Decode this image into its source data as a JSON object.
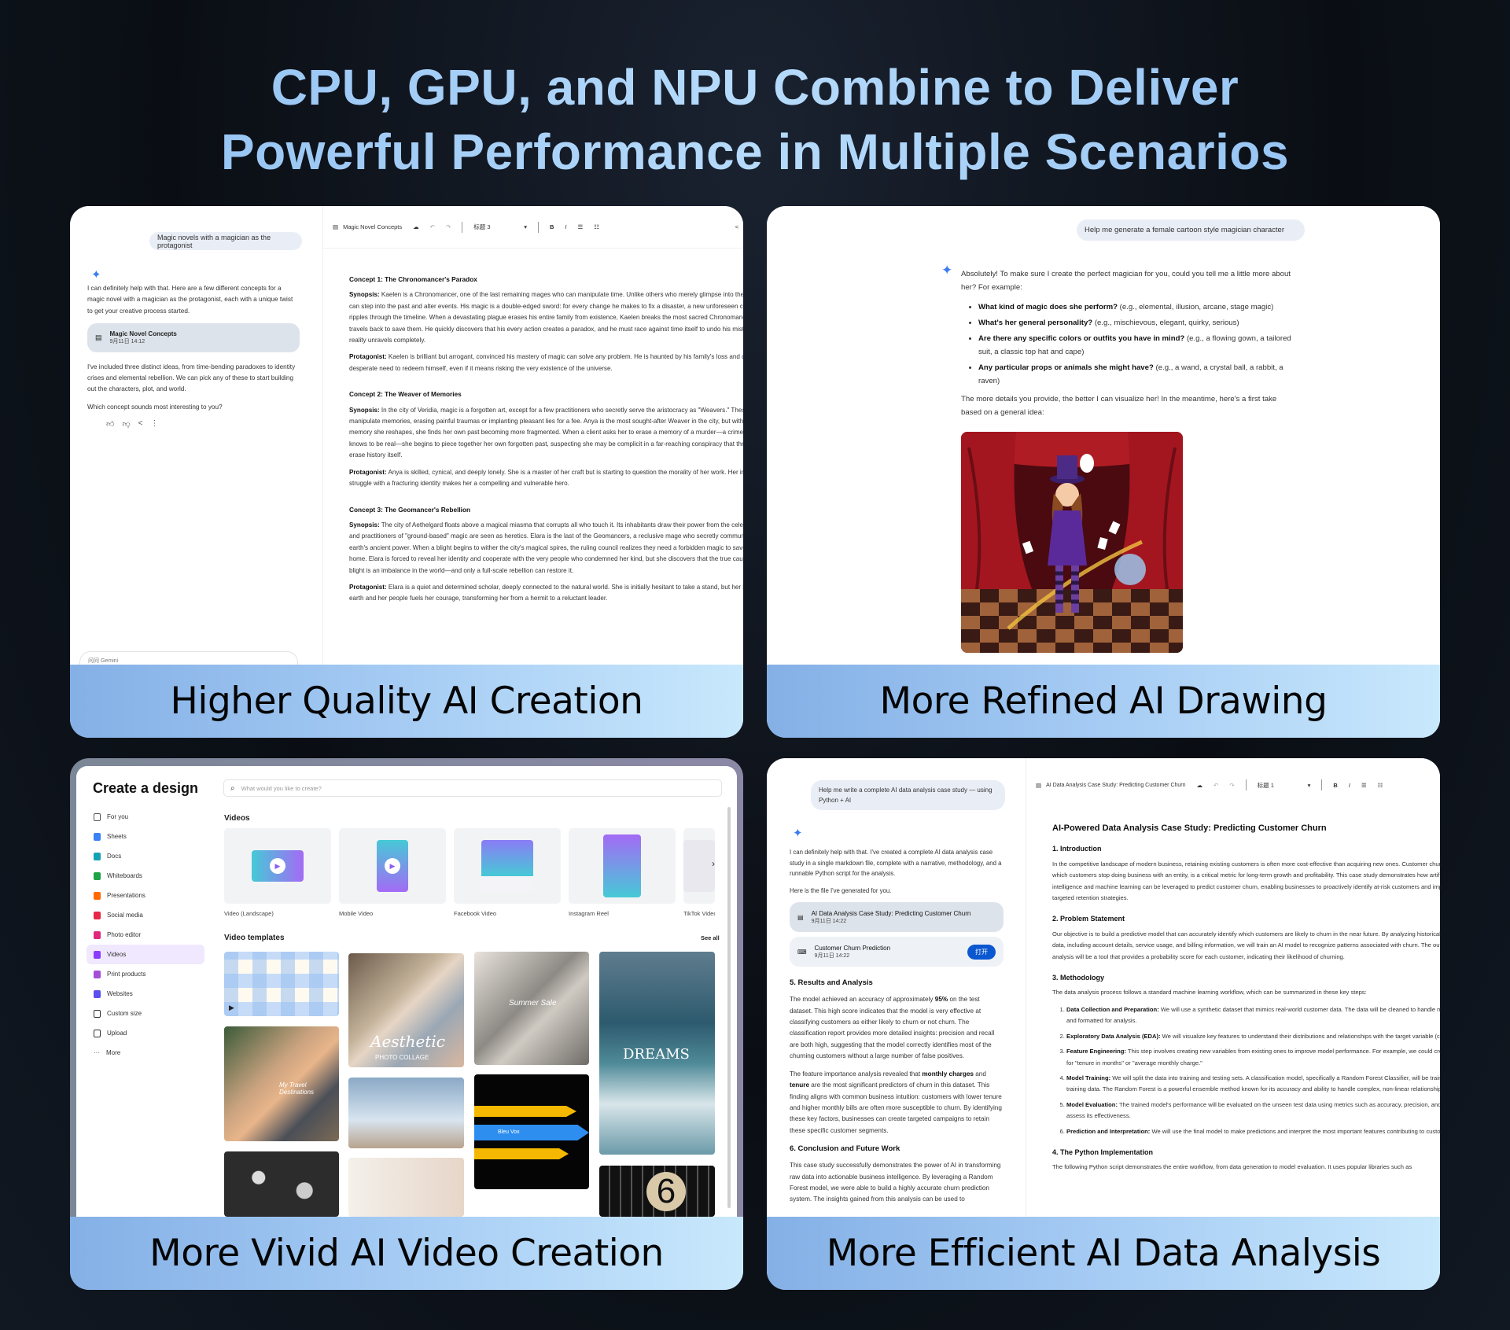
{
  "hero": {
    "lines": [
      "CPU, GPU, and NPU Combine to Deliver",
      "Powerful Performance in Multiple Scenarios"
    ],
    "color": "#9ccaf6"
  },
  "panels": {
    "creation": {
      "caption": "Higher Quality AI Creation",
      "user_prompt": "Magic novels with a magician as the protagonist",
      "reply": [
        "I can definitely help with that. Here are a few different concepts for a magic novel with a magician as the protagonist, each with a unique twist to get your creative process started.",
        "I've included three distinct ideas, from time-bending paradoxes to identity crises and elemental rebellion. We can pick any of these to start building out the characters, plot, and world.",
        "Which concept sounds most interesting to you?"
      ],
      "file_card": {
        "title": "Magic Novel Concepts",
        "date": "9月11日 14:12"
      },
      "input_placeholder": "问问 Gemini",
      "doc": {
        "title": "Magic Novel Concepts",
        "style": "标题 3",
        "concepts": [
          {
            "heading": "Concept 1: The Chronomancer's Paradox",
            "paragraphs": [
              {
                "label": "Synopsis:",
                "text": " Kaelen is a Chronomancer, one of the last remaining mages who can manipulate time. Unlike others who merely glimpse into the future, he can step into the past and alter events. His magic is a double-edged sword: for every change he makes to fix a disaster, a new unforeseen consequence ripples through the timeline. When a devastating plague erases his entire family from existence, Kaelen breaks the most sacred Chronomancer rule and travels back to save them. He quickly discovers that his every action creates a paradox, and he must race against time itself to undo his mistakes before reality unravels completely."
              },
              {
                "label": "Protagonist:",
                "text": " Kaelen is brilliant but arrogant, convinced his mastery of magic can solve any problem. He is haunted by his family's loss and driven by a desperate need to redeem himself, even if it means risking the very existence of the universe."
              }
            ]
          },
          {
            "heading": "Concept 2: The Weaver of Memories",
            "paragraphs": [
              {
                "label": "Synopsis:",
                "text": " In the city of Veridia, magic is a forgotten art, except for a few practitioners who secretly serve the aristocracy as \"Weavers.\" These mages manipulate memories, erasing painful traumas or implanting pleasant lies for a fee. Anya is the most sought-after Weaver in the city, but with every memory she reshapes, she finds her own past becoming more fragmented. When a client asks her to erase a memory of a murder—a crime Anya knows to be real—she begins to piece together her own forgotten past, suspecting she may be complicit in a far-reaching conspiracy that threatens to erase history itself."
              },
              {
                "label": "Protagonist:",
                "text": " Anya is skilled, cynical, and deeply lonely. She is a master of her craft but is starting to question the morality of her work. Her internal struggle with a fracturing identity makes her a compelling and vulnerable hero."
              }
            ]
          },
          {
            "heading": "Concept 3: The Geomancer's Rebellion",
            "paragraphs": [
              {
                "label": "Synopsis:",
                "text": " The city of Aethelgard floats above a magical miasma that corrupts all who touch it. Its inhabitants draw their power from the celestial aether, and practitioners of \"ground-based\" magic are seen as heretics. Elara is the last of the Geomancers, a reclusive mage who secretly communes with the earth's ancient power. When a blight begins to wither the city's magical spires, the ruling council realizes they need a forbidden magic to save their home. Elara is forced to reveal her identity and cooperate with the very people who condemned her kind, but she discovers that the true cause of the blight is an imbalance in the world—and only a full-scale rebellion can restore it."
              },
              {
                "label": "Protagonist:",
                "text": " Elara is a quiet and determined scholar, deeply connected to the natural world. She is initially hesitant to take a stand, but her love for the earth and her people fuels her courage, transforming her from a hermit to a reluctant leader."
              }
            ]
          }
        ]
      }
    },
    "drawing": {
      "caption": "More Refined AI Drawing",
      "user_prompt": "Help me generate a female cartoon style magician character",
      "intro": "Absolutely! To make sure I create the perfect magician for you, could you tell me a little more about her? For example:",
      "bullets": [
        {
          "label": "What kind of magic does she perform?",
          "text": " (e.g., elemental, illusion, arcane, stage magic)"
        },
        {
          "label": "What's her general personality?",
          "text": " (e.g., mischievous, elegant, quirky, serious)"
        },
        {
          "label": "Are there any specific colors or outfits you have in mind?",
          "text": " (e.g., a flowing gown, a tailored suit, a classic top hat and cape)"
        },
        {
          "label": "Any particular props or animals she might have?",
          "text": " (e.g., a wand, a crystal ball, a rabbit, a raven)"
        }
      ],
      "outro": "The more details you provide, the better I can visualize her! In the meantime, here's a first take based on a general idea:",
      "image_subject": "female-cartoon-magician-on-stage"
    },
    "video": {
      "caption": "More Vivid AI Video Creation",
      "title": "Create a design",
      "search_placeholder": "What would you like to create?",
      "sidebar": [
        {
          "label": "For you",
          "icon": "sparkle-icon",
          "color": "#555555"
        },
        {
          "label": "Sheets",
          "icon": "sheets-icon",
          "color": "#3b82f6"
        },
        {
          "label": "Docs",
          "icon": "docs-icon",
          "color": "#13a3b5"
        },
        {
          "label": "Whiteboards",
          "icon": "whiteboard-icon",
          "color": "#1ea446"
        },
        {
          "label": "Presentations",
          "icon": "presentation-icon",
          "color": "#ff6b00"
        },
        {
          "label": "Social media",
          "icon": "social-media-icon",
          "color": "#e8264a"
        },
        {
          "label": "Photo editor",
          "icon": "photo-editor-icon",
          "color": "#e0287e"
        },
        {
          "label": "Videos",
          "icon": "video-icon",
          "color": "#8b3dff",
          "selected": true
        },
        {
          "label": "Print products",
          "icon": "print-icon",
          "color": "#a34fd8"
        },
        {
          "label": "Websites",
          "icon": "website-icon",
          "color": "#5b4ff0"
        },
        {
          "label": "Custom size",
          "icon": "custom-size-icon",
          "color": "#333333"
        },
        {
          "label": "Upload",
          "icon": "upload-icon",
          "color": "#333333"
        },
        {
          "label": "More",
          "icon": "more-icon",
          "color": "#333333"
        }
      ],
      "videos_heading": "Videos",
      "video_types": [
        "Video (Landscape)",
        "Mobile Video",
        "Facebook Video",
        "Instagram Reel",
        "TikTok Video"
      ],
      "templates_heading": "Video templates",
      "see_all": "See all",
      "thumb_text": {
        "collage": "Aesthetic",
        "collage_sub": "PHOTO COLLAGE",
        "sale": "Summer Sale",
        "dreams": "DREAMS",
        "travel": "My Travel Destinations",
        "vox": "Bleu Vox",
        "countdown": "6"
      }
    },
    "analysis": {
      "caption": "More Efficient AI Data Analysis",
      "user_prompt": "Help me write a complete AI data analysis case study — using Python + AI",
      "reply": [
        "I can definitely help with that. I've created a complete AI data analysis case study in a single markdown file, complete with a narrative, methodology, and a runnable Python script for the analysis.",
        "Here is the file I've generated for you."
      ],
      "cards": [
        {
          "title": "AI Data Analysis Case Study: Predicting Customer Churn",
          "date": "9月11日 14:22"
        },
        {
          "title": "Customer Churn Prediction",
          "date": "9月11日 14:22",
          "button": "打开"
        }
      ],
      "chat_sections": [
        {
          "heading": "5. Results and Analysis",
          "paras": [
            [
              "The model achieved an accuracy of approximately ",
              "95%",
              " on the test dataset. This high score indicates that the model is very effective at classifying customers as either likely to churn or not churn. The classification report provides more detailed insights: precision and recall are both high, suggesting that the model correctly identifies most of the churning customers without a large number of false positives."
            ],
            [
              "The feature importance analysis revealed that ",
              "monthly charges",
              " and ",
              "tenure",
              " are the most significant predictors of churn in this dataset. This finding aligns with common business intuition: customers with lower tenure and higher monthly bills are often more susceptible to churn. By identifying these key factors, businesses can create targeted campaigns to retain these specific customer segments."
            ]
          ]
        },
        {
          "heading": "6. Conclusion and Future Work",
          "paras": [
            [
              "This case study successfully demonstrates the power of AI in transforming raw data into actionable business intelligence. By leveraging a Random Forest model, we were able to build a highly accurate churn prediction system. The insights gained from this analysis can be used to"
            ]
          ]
        }
      ],
      "doc": {
        "toolbar_title": "AI Data Analysis Case Study: Predicting Customer Churn",
        "style": "标题 1",
        "title": "AI-Powered Data Analysis Case Study: Predicting Customer Churn",
        "intro_heading": "1. Introduction",
        "intro": "In the competitive landscape of modern business, retaining existing customers is often more cost-effective than acquiring new ones. Customer churn, the rate at which customers stop doing business with an entity, is a critical metric for long-term growth and profitability. This case study demonstrates how artificial intelligence and machine learning can be leveraged to predict customer churn, enabling businesses to proactively identify at-risk customers and implement targeted retention strategies.",
        "problem_heading": "2. Problem Statement",
        "problem": "Our objective is to build a predictive model that can accurately identify which customers are likely to churn in the near future. By analyzing historical customer data, including account details, service usage, and billing information, we will train an AI model to recognize patterns associated with churn. The outcome of this analysis will be a tool that provides a probability score for each customer, indicating their likelihood of churning.",
        "method_heading": "3. Methodology",
        "method_intro": "The data analysis process follows a standard machine learning workflow, which can be summarized in these key steps:",
        "steps": [
          {
            "label": "Data Collection and Preparation:",
            "text": " We will use a synthetic dataset that mimics real-world customer data. The data will be cleaned to handle missing values and formatted for analysis."
          },
          {
            "label": "Exploratory Data Analysis (EDA):",
            "text": " We will visualize key features to understand their distributions and relationships with the target variable (churn)."
          },
          {
            "label": "Feature Engineering:",
            "text": " This step involves creating new variables from existing ones to improve model performance. For example, we could create a feature for \"tenure in months\" or \"average monthly charge.\""
          },
          {
            "label": "Model Training:",
            "text": " We will split the data into training and testing sets. A classification model, specifically a Random Forest Classifier, will be trained on the training data. The Random Forest is a powerful ensemble method known for its accuracy and ability to handle complex, non-linear relationships."
          },
          {
            "label": "Model Evaluation:",
            "text": " The trained model's performance will be evaluated on the unseen test data using metrics such as accuracy, precision, and recall to assess its effectiveness."
          },
          {
            "label": "Prediction and Interpretation:",
            "text": " We will use the final model to make predictions and interpret the most important features contributing to customer churn."
          }
        ],
        "python_heading": "4. The Python Implementation",
        "python": "The following Python script demonstrates the entire workflow, from data generation to model evaluation. It uses popular libraries such as"
      }
    }
  }
}
